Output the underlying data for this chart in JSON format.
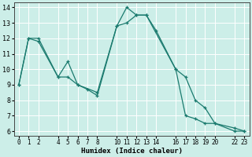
{
  "xlabel": "Humidex (Indice chaleur)",
  "background_color": "#cceee8",
  "grid_color": "#ffffff",
  "line_color": "#1a7a6e",
  "line1_x": [
    0,
    1,
    2,
    4,
    5,
    6,
    7,
    8,
    10,
    11,
    12,
    13,
    14,
    16,
    17,
    18,
    19,
    20,
    22,
    23
  ],
  "line1_y": [
    9,
    12,
    12,
    9.5,
    10.5,
    9.0,
    8.7,
    8.3,
    12.8,
    14.0,
    13.5,
    13.5,
    12.5,
    10.0,
    9.5,
    8.0,
    7.5,
    6.5,
    6.0,
    6.0
  ],
  "line2_x": [
    0,
    1,
    2,
    4,
    5,
    6,
    8,
    10,
    11,
    12,
    13,
    16,
    17,
    18,
    19,
    20,
    22,
    23
  ],
  "line2_y": [
    9,
    12,
    11.8,
    9.5,
    9.5,
    9.0,
    8.5,
    12.8,
    13.0,
    13.5,
    13.5,
    10.0,
    7.0,
    6.8,
    6.5,
    6.5,
    6.2,
    6.0
  ],
  "xlim": [
    -0.5,
    23.5
  ],
  "ylim": [
    5.7,
    14.3
  ],
  "xticks": [
    0,
    1,
    2,
    4,
    5,
    6,
    7,
    8,
    10,
    11,
    12,
    13,
    14,
    16,
    17,
    18,
    19,
    20,
    22,
    23
  ],
  "yticks": [
    6,
    7,
    8,
    9,
    10,
    11,
    12,
    13,
    14
  ],
  "xlabel_fontsize": 6.5,
  "tick_fontsize": 5.5
}
